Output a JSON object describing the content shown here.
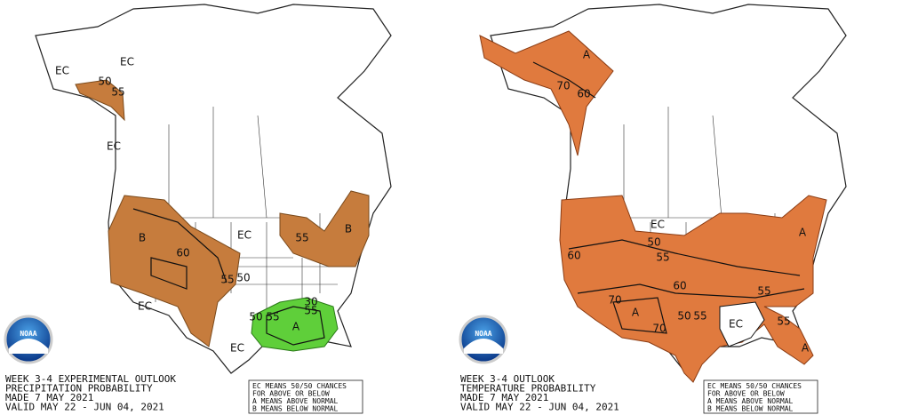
{
  "panels": [
    {
      "logo_text": "NOAA",
      "title_lines": [
        "WEEK 3-4 EXPERIMENTAL OUTLOOK",
        "PRECIPITATION PROBABILITY",
        "MADE  7 MAY 2021",
        "VALID  MAY 22 - JUN 04, 2021"
      ],
      "legend_lines": [
        "EC MEANS 50/50 CHANCES",
        "FOR ABOVE OR BELOW",
        "A MEANS ABOVE NORMAL",
        "B MEANS BELOW NORMAL"
      ],
      "map_labels": [
        "EC",
        "EC",
        "50",
        "55",
        "EC",
        "B",
        "60",
        "55",
        "50",
        "EC",
        "55",
        "B",
        "EC",
        "50",
        "55",
        "A",
        "30",
        "55",
        "EC"
      ]
    },
    {
      "logo_text": "NOAA",
      "title_lines": [
        "WEEK 3-4 OUTLOOK",
        "TEMPERATURE PROBABILITY",
        "MADE  7 MAY 2021",
        "VALID  MAY 22 - JUN 04, 2021"
      ],
      "legend_lines": [
        "EC MEANS 50/50 CHANCES",
        "FOR ABOVE OR BELOW",
        "A MEANS ABOVE NORMAL",
        "B MEANS BELOW NORMAL"
      ],
      "map_labels": [
        "A",
        "70",
        "60",
        "EC",
        "50",
        "55",
        "60",
        "60",
        "70",
        "A",
        "70",
        "55",
        "50",
        "55",
        "EC",
        "55",
        "A",
        "A"
      ]
    }
  ]
}
